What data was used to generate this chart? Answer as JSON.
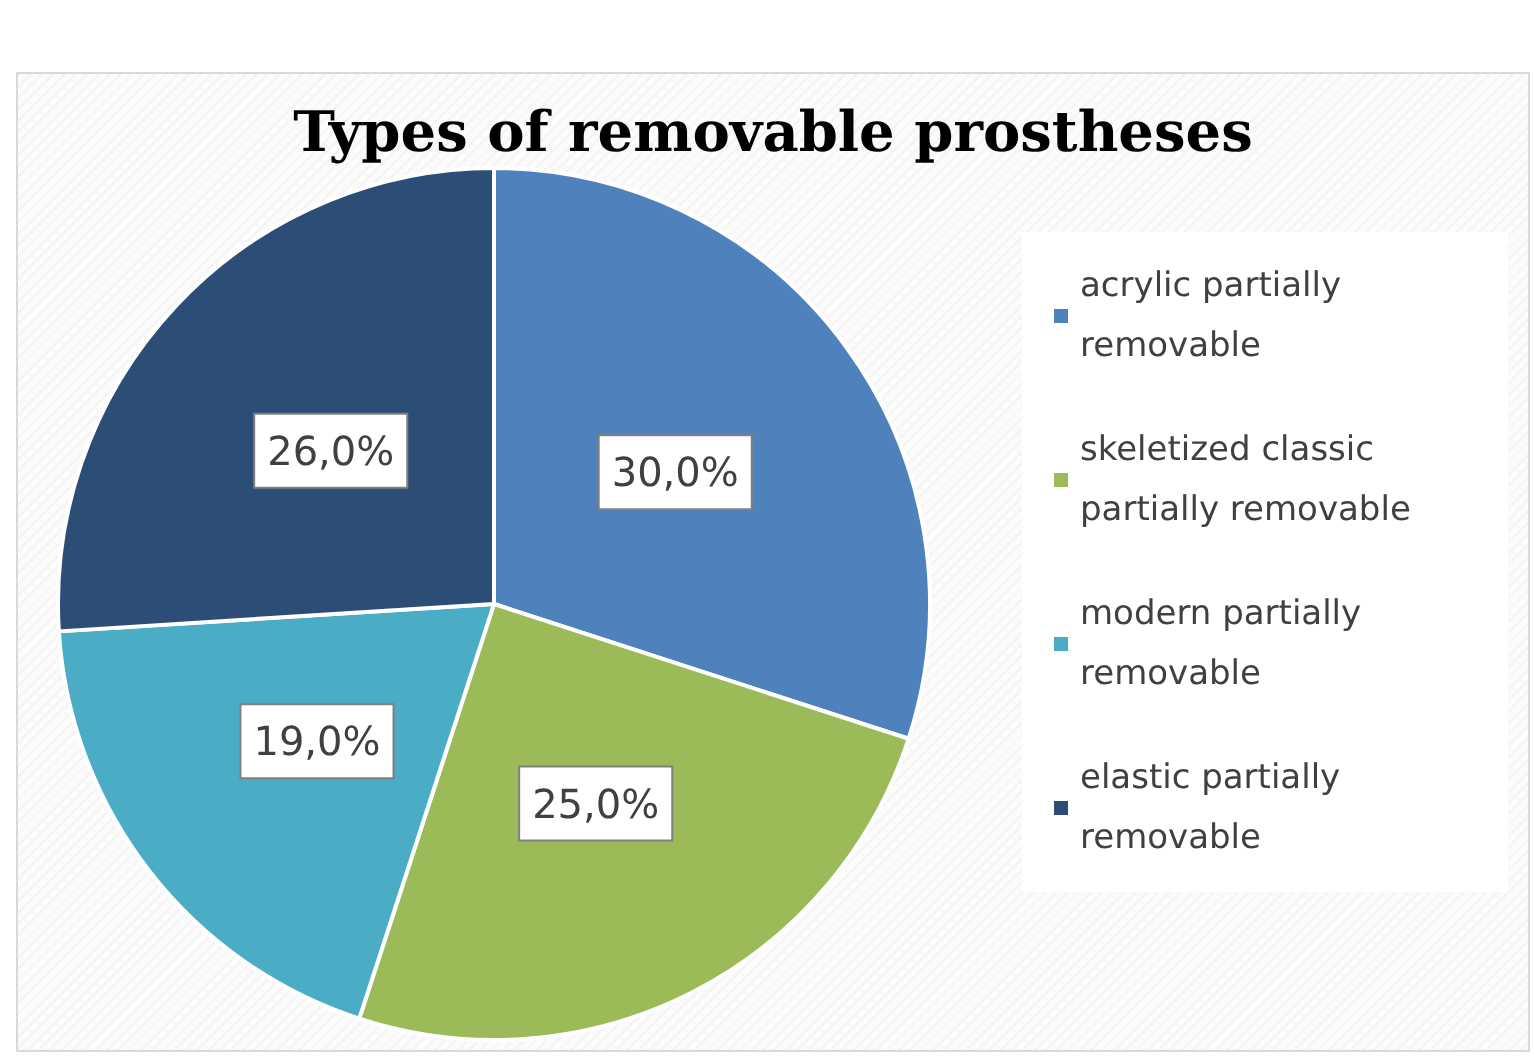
{
  "chart_data": {
    "type": "pie",
    "title": "Types of removable prostheses",
    "categories": [
      "acrylic partially removable",
      "skeletized classic partially removable",
      "modern partially removable",
      "elastic partially removable"
    ],
    "values": [
      30,
      25,
      19,
      26
    ],
    "value_labels": [
      "30,0%",
      "25,0%",
      "19,0%",
      "26,0%"
    ],
    "colors": [
      "#4f81bd",
      "#9bbb59",
      "#4bacc6",
      "#2c4d75"
    ],
    "legend": "right"
  }
}
